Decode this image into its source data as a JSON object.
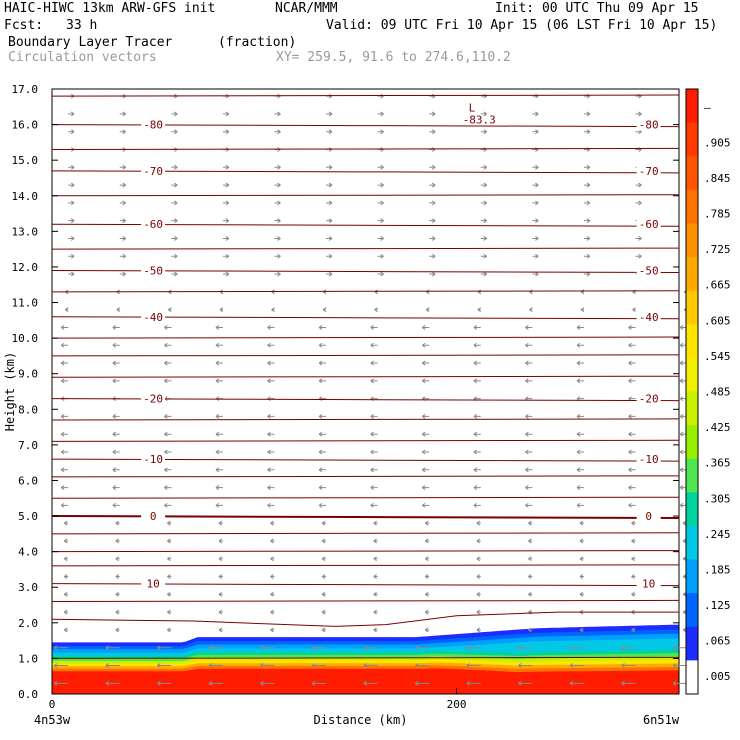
{
  "header": {
    "model": "HAIC-HIWC 13km ARW-GFS init",
    "center": "NCAR/MMM",
    "init": "Init: 00 UTC Thu 09 Apr 15",
    "fcst_label": "Fcst:",
    "fcst_value": "33 h",
    "valid": "Valid: 09 UTC Fri 10 Apr 15 (06 LST Fri 10 Apr 15)",
    "field": "Boundary Layer Tracer",
    "field_units": "(fraction)",
    "vectors": "Circulation vectors",
    "xy": "XY= 259.5, 91.6 to 274.6,110.2"
  },
  "chart_data": {
    "type": "contour",
    "xlabel": "Distance (km)",
    "ylabel": "Height (km)",
    "xlim": [
      0,
      310
    ],
    "ylim": [
      0,
      17
    ],
    "x_ticks": [
      0,
      200
    ],
    "x_tick_labels": [
      "0",
      "200"
    ],
    "x_end_labels": [
      "4n53w",
      "6n51w"
    ],
    "y_ticks": [
      0.0,
      1.0,
      2.0,
      3.0,
      4.0,
      5.0,
      6.0,
      7.0,
      8.0,
      9.0,
      10.0,
      11.0,
      12.0,
      13.0,
      14.0,
      15.0,
      16.0,
      17.0
    ],
    "y_tick_labels": [
      "0.0",
      "1.0",
      "2.0",
      "3.0",
      "4.0",
      "5.0",
      "6.0",
      "7.0",
      "8.0",
      "9.0",
      "10.0",
      "11.0",
      "12.0",
      "13.0",
      "14.0",
      "15.0",
      "16.0",
      "17.0"
    ],
    "colorbar": {
      "labels": [
        "–",
        ".905",
        ".845",
        ".785",
        ".725",
        ".665",
        ".605",
        ".545",
        ".485",
        ".425",
        ".365",
        ".305",
        ".245",
        ".185",
        ".125",
        ".065",
        ".005"
      ],
      "colors": [
        "#ff1c00",
        "#ff3a00",
        "#ff5500",
        "#ff7200",
        "#ff9000",
        "#ffaa00",
        "#ffc800",
        "#ffe400",
        "#f0f000",
        "#c8f000",
        "#96f000",
        "#50e650",
        "#00d2a0",
        "#00c8e6",
        "#00a0ff",
        "#0064ff",
        "#1e2dff",
        "#ffffff"
      ]
    },
    "temperature_contours": [
      {
        "label": "-80",
        "height": 16.0
      },
      {
        "label": "-70",
        "height": 14.7
      },
      {
        "label": "-60",
        "height": 13.2
      },
      {
        "label": "-50",
        "height": 11.9
      },
      {
        "label": "-40",
        "height": 10.6
      },
      {
        "label": "-20",
        "height": 8.3
      },
      {
        "label": "-10",
        "height": 6.6
      },
      {
        "label": "0",
        "height": 5.0
      },
      {
        "label": "10",
        "height": 3.1
      }
    ],
    "minimum_marker": {
      "letter": "L",
      "value": "-83.3",
      "x": 205,
      "height": 16.7
    },
    "tracer_top_km": [
      {
        "x": 0,
        "y": 1.45
      },
      {
        "x": 65,
        "y": 1.45
      },
      {
        "x": 72,
        "y": 1.6
      },
      {
        "x": 180,
        "y": 1.6
      },
      {
        "x": 240,
        "y": 1.85
      },
      {
        "x": 310,
        "y": 1.95
      }
    ]
  }
}
